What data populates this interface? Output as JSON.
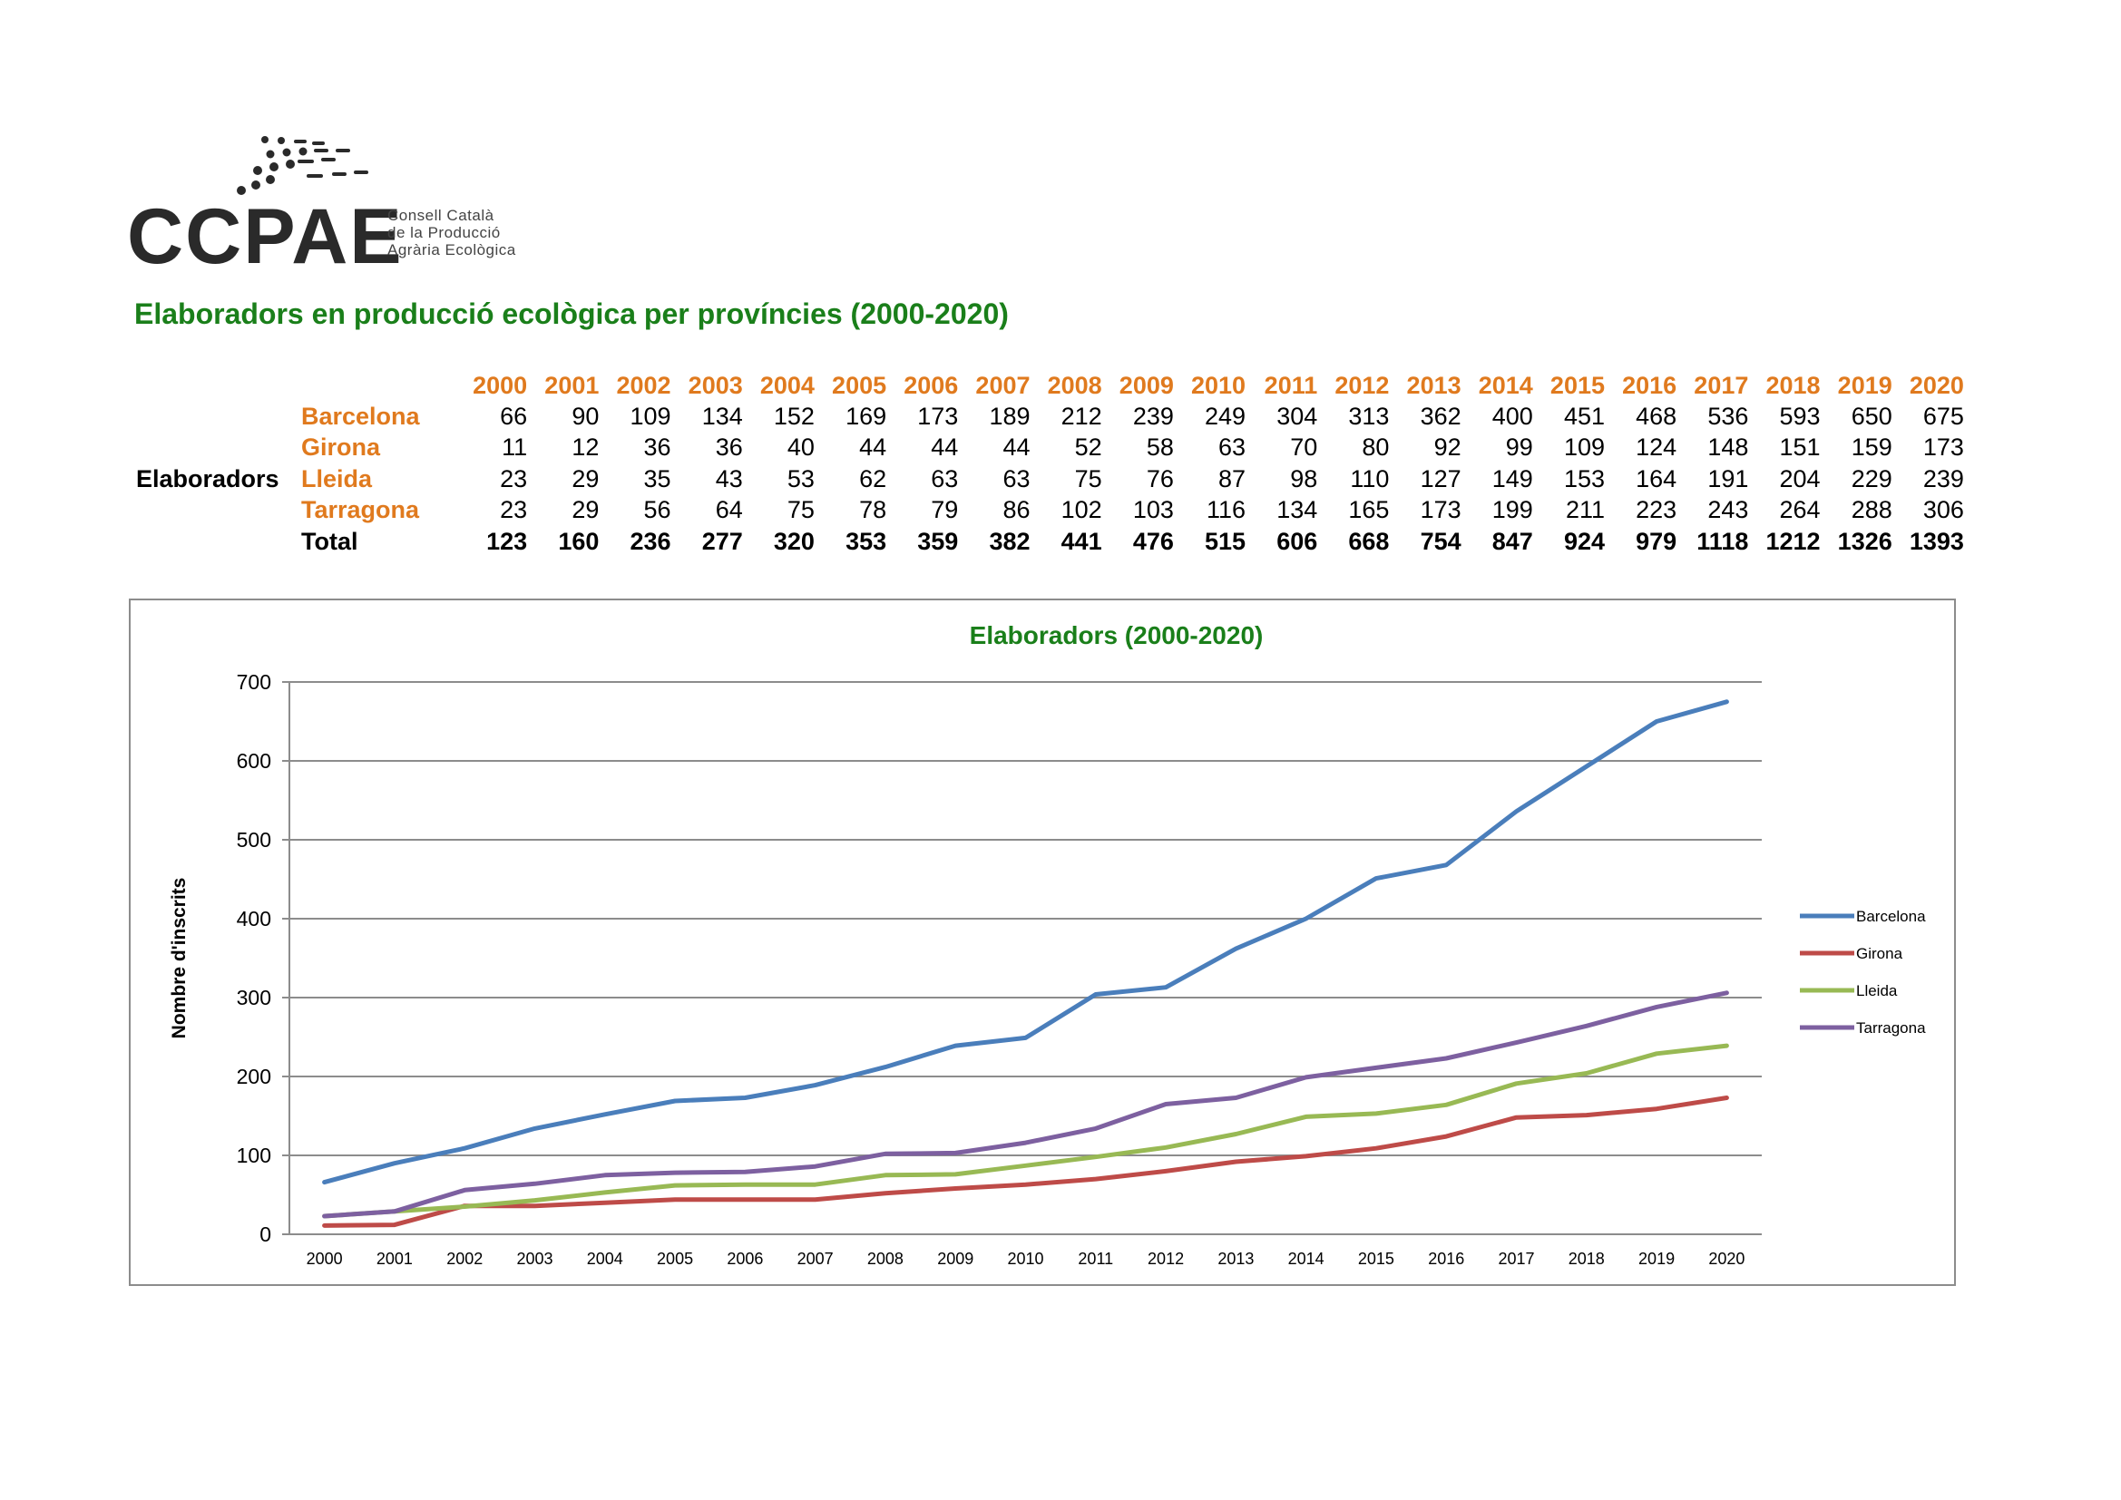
{
  "logo": {
    "acronym": "CCPAE",
    "subtitle_lines": [
      "Consell Català",
      "de la Producció",
      "Agrària Ecològica"
    ]
  },
  "page_title": "Elaboradors en producció ecològica per províncies (2000-2020)",
  "table": {
    "row_group_label": "Elaboradors",
    "years": [
      "2000",
      "2001",
      "2002",
      "2003",
      "2004",
      "2005",
      "2006",
      "2007",
      "2008",
      "2009",
      "2010",
      "2011",
      "2012",
      "2013",
      "2014",
      "2015",
      "2016",
      "2017",
      "2018",
      "2019",
      "2020"
    ],
    "rows": [
      {
        "label": "Barcelona",
        "values": [
          66,
          90,
          109,
          134,
          152,
          169,
          173,
          189,
          212,
          239,
          249,
          304,
          313,
          362,
          400,
          451,
          468,
          536,
          593,
          650,
          675
        ]
      },
      {
        "label": "Girona",
        "values": [
          11,
          12,
          36,
          36,
          40,
          44,
          44,
          44,
          52,
          58,
          63,
          70,
          80,
          92,
          99,
          109,
          124,
          148,
          151,
          159,
          173
        ]
      },
      {
        "label": "Lleida",
        "values": [
          23,
          29,
          35,
          43,
          53,
          62,
          63,
          63,
          75,
          76,
          87,
          98,
          110,
          127,
          149,
          153,
          164,
          191,
          204,
          229,
          239
        ]
      },
      {
        "label": "Tarragona",
        "values": [
          23,
          29,
          56,
          64,
          75,
          78,
          79,
          86,
          102,
          103,
          116,
          134,
          165,
          173,
          199,
          211,
          223,
          243,
          264,
          288,
          306
        ]
      }
    ],
    "total": {
      "label": "Total",
      "values": [
        123,
        160,
        236,
        277,
        320,
        353,
        359,
        382,
        441,
        476,
        515,
        606,
        668,
        754,
        847,
        924,
        979,
        1118,
        1212,
        1326,
        1393
      ]
    }
  },
  "colors": {
    "title_green": "#1a7f1a",
    "header_orange": "#e07a1e",
    "barcelona": "#4a7ebb",
    "girona": "#be4b48",
    "lleida": "#98b954",
    "tarragona": "#7d60a0"
  },
  "chart_data": {
    "type": "line",
    "title": "Elaboradors (2000-2020)",
    "xlabel": "",
    "ylabel": "Nombre d'inscrits",
    "x": [
      "2000",
      "2001",
      "2002",
      "2003",
      "2004",
      "2005",
      "2006",
      "2007",
      "2008",
      "2009",
      "2010",
      "2011",
      "2012",
      "2013",
      "2014",
      "2015",
      "2016",
      "2017",
      "2018",
      "2019",
      "2020"
    ],
    "yticks": [
      0,
      100,
      200,
      300,
      400,
      500,
      600,
      700
    ],
    "ylim": [
      0,
      700
    ],
    "grid": true,
    "legend": "right",
    "series": [
      {
        "name": "Barcelona",
        "color": "#4a7ebb",
        "values": [
          66,
          90,
          109,
          134,
          152,
          169,
          173,
          189,
          212,
          239,
          249,
          304,
          313,
          362,
          400,
          451,
          468,
          536,
          593,
          650,
          675
        ]
      },
      {
        "name": "Girona",
        "color": "#be4b48",
        "values": [
          11,
          12,
          36,
          36,
          40,
          44,
          44,
          44,
          52,
          58,
          63,
          70,
          80,
          92,
          99,
          109,
          124,
          148,
          151,
          159,
          173
        ]
      },
      {
        "name": "Lleida",
        "color": "#98b954",
        "values": [
          23,
          29,
          35,
          43,
          53,
          62,
          63,
          63,
          75,
          76,
          87,
          98,
          110,
          127,
          149,
          153,
          164,
          191,
          204,
          229,
          239
        ]
      },
      {
        "name": "Tarragona",
        "color": "#7d60a0",
        "values": [
          23,
          29,
          56,
          64,
          75,
          78,
          79,
          86,
          102,
          103,
          116,
          134,
          165,
          173,
          199,
          211,
          223,
          243,
          264,
          288,
          306
        ]
      }
    ]
  }
}
